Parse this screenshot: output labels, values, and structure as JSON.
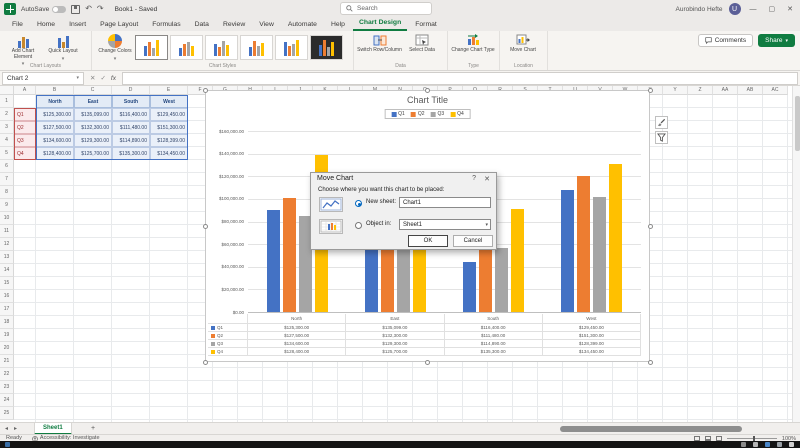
{
  "icons": {
    "undo": "↶",
    "redo": "↷",
    "caret": "▾",
    "dropdown": "▾",
    "close": "✕",
    "minimize": "—",
    "maximize": "▢",
    "help": "?",
    "check": "✓",
    "cancel_x": "✕",
    "add": "+",
    "prev": "◂",
    "next": "▸"
  },
  "titlebar": {
    "autosave_label": "AutoSave",
    "doc_title": "Book1 - Saved",
    "search_placeholder": "Search",
    "user_name": "Aurobindo Hefte",
    "user_initial": "U"
  },
  "header_actions": {
    "comments": "Comments",
    "share": "Share"
  },
  "tabs": {
    "items": [
      "File",
      "Home",
      "Insert",
      "Page Layout",
      "Formulas",
      "Data",
      "Review",
      "View",
      "Automate",
      "Help",
      "Chart Design",
      "Format"
    ],
    "active": "Chart Design"
  },
  "ribbon": {
    "chart_layouts": {
      "label": "Chart Layouts",
      "add_chart_element": "Add Chart Element",
      "quick_layout": "Quick Layout"
    },
    "chart_styles": {
      "label": "Chart Styles",
      "change_colors": "Change Colors"
    },
    "data": {
      "label": "Data",
      "switch_row_column": "Switch Row/Column",
      "select_data": "Select Data"
    },
    "type": {
      "label": "Type",
      "change_chart_type": "Change Chart Type"
    },
    "location": {
      "label": "Location",
      "move_chart": "Move Chart"
    }
  },
  "formulabar": {
    "name_box": "Chart 2",
    "fx": "fx"
  },
  "sheet": {
    "columns": [
      [
        "A",
        22
      ],
      [
        "B",
        38
      ],
      [
        "C",
        38
      ],
      [
        "D",
        38
      ],
      [
        "E",
        38
      ],
      [
        "F",
        25
      ],
      [
        "G",
        25
      ],
      [
        "H",
        25
      ],
      [
        "I",
        25
      ],
      [
        "J",
        25
      ],
      [
        "K",
        25
      ],
      [
        "L",
        25
      ],
      [
        "M",
        25
      ],
      [
        "N",
        25
      ],
      [
        "O",
        25
      ],
      [
        "P",
        25
      ],
      [
        "Q",
        25
      ],
      [
        "R",
        25
      ],
      [
        "S",
        25
      ],
      [
        "T",
        25
      ],
      [
        "U",
        25
      ],
      [
        "V",
        25
      ],
      [
        "W",
        25
      ],
      [
        "X",
        25
      ],
      [
        "Y",
        25
      ],
      [
        "Z",
        25
      ],
      [
        "AA",
        25
      ],
      [
        "AB",
        25
      ],
      [
        "AC",
        25
      ]
    ],
    "row_count": 25
  },
  "table": {
    "col_headers": [
      "North",
      "East",
      "South",
      "West"
    ],
    "rows": [
      {
        "label": "Q1",
        "values": [
          "$125,300.00",
          "$135,099.00",
          "$116,400.00",
          "$129,450.00"
        ]
      },
      {
        "label": "Q2",
        "values": [
          "$127,500.00",
          "$132,300.00",
          "$111,480.00",
          "$151,300.00"
        ]
      },
      {
        "label": "Q3",
        "values": [
          "$134,600.00",
          "$129,300.00",
          "$114,890.00",
          "$128,399.00"
        ]
      },
      {
        "label": "Q4",
        "values": [
          "$128,400.00",
          "$125,700.00",
          "$135,300.00",
          "$134,450.00"
        ]
      }
    ]
  },
  "chart_data": {
    "type": "bar",
    "title": "Chart Title",
    "categories": [
      "North",
      "East",
      "South",
      "West"
    ],
    "series": [
      {
        "name": "Q1",
        "color": "#4472C4",
        "values": [
          90000,
          88000,
          44000,
          108000
        ]
      },
      {
        "name": "Q2",
        "color": "#ED7D31",
        "values": [
          101000,
          92000,
          55000,
          120000
        ]
      },
      {
        "name": "Q3",
        "color": "#A5A5A5",
        "values": [
          85000,
          90000,
          57000,
          102000
        ]
      },
      {
        "name": "Q4",
        "color": "#FFC000",
        "values": [
          139000,
          94000,
          91000,
          131000
        ]
      }
    ],
    "ylim": [
      0,
      160000
    ],
    "y_tick_labels": [
      "$160,000.00",
      "$140,000.00",
      "$120,000.00",
      "$100,000.00",
      "$80,000.00",
      "$60,000.00",
      "$40,000.00",
      "$20,000.00",
      "$0.00"
    ],
    "legend_position": "top",
    "grid": true,
    "has_data_table": true
  },
  "dialog": {
    "title": "Move Chart",
    "prompt": "Choose where you want this chart to be placed:",
    "new_sheet_label": "New sheet:",
    "new_sheet_value": "Chart1",
    "object_in_label": "Object in:",
    "object_in_value": "Sheet1",
    "ok": "OK",
    "cancel": "Cancel"
  },
  "sheet_tabs": {
    "active": "Sheet1"
  },
  "statusbar": {
    "ready": "Ready",
    "accessibility": "Accessibility: Investigate",
    "zoom": "100%"
  }
}
